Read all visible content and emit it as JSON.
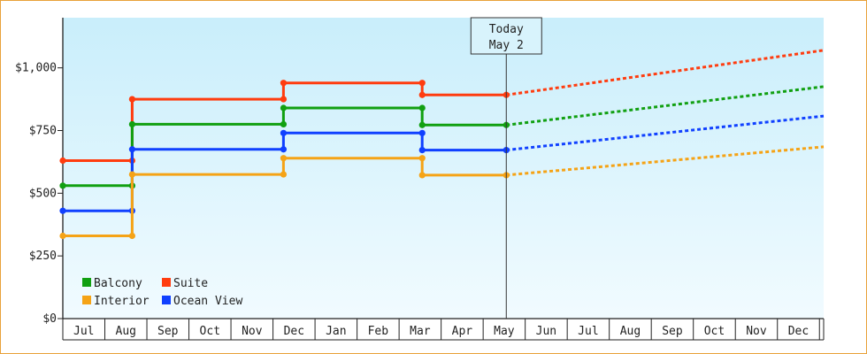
{
  "chart_data": {
    "type": "line",
    "step": true,
    "x_axis_labels": [
      "Jul",
      "Aug",
      "Sep",
      "Oct",
      "Nov",
      "Dec",
      "Jan",
      "Feb",
      "Mar",
      "Apr",
      "May",
      "Jun",
      "Jul",
      "Aug",
      "Sep",
      "Oct",
      "Nov",
      "Dec"
    ],
    "y_ticks": [
      "$0",
      "$250",
      "$500",
      "$750",
      "$1,000"
    ],
    "ylim": [
      0,
      1200
    ],
    "xlim_months": [
      -0.5,
      17.6
    ],
    "today": {
      "label_line1": "Today",
      "label_line2": "May 2",
      "x": 10.05
    },
    "series": [
      {
        "name": "Suite",
        "color": "#ff3c0f",
        "points": [
          [
            -0.5,
            630
          ],
          [
            1.15,
            630
          ],
          [
            1.15,
            875
          ],
          [
            4.75,
            875
          ],
          [
            4.75,
            940
          ],
          [
            8.05,
            940
          ],
          [
            8.05,
            892
          ],
          [
            10.05,
            892
          ]
        ],
        "projection": [
          [
            10.05,
            892
          ],
          [
            17.6,
            1070
          ]
        ]
      },
      {
        "name": "Balcony",
        "color": "#11a011",
        "points": [
          [
            -0.5,
            530
          ],
          [
            1.15,
            530
          ],
          [
            1.15,
            775
          ],
          [
            4.75,
            775
          ],
          [
            4.75,
            840
          ],
          [
            8.05,
            840
          ],
          [
            8.05,
            772
          ],
          [
            10.05,
            772
          ]
        ],
        "projection": [
          [
            10.05,
            772
          ],
          [
            17.6,
            925
          ]
        ]
      },
      {
        "name": "Ocean View",
        "color": "#1040ff",
        "points": [
          [
            -0.5,
            430
          ],
          [
            1.15,
            430
          ],
          [
            1.15,
            675
          ],
          [
            4.75,
            675
          ],
          [
            4.75,
            740
          ],
          [
            8.05,
            740
          ],
          [
            8.05,
            672
          ],
          [
            10.05,
            672
          ]
        ],
        "projection": [
          [
            10.05,
            672
          ],
          [
            17.6,
            808
          ]
        ]
      },
      {
        "name": "Interior",
        "color": "#f5a316",
        "points": [
          [
            -0.5,
            330
          ],
          [
            1.15,
            330
          ],
          [
            1.15,
            575
          ],
          [
            4.75,
            575
          ],
          [
            4.75,
            640
          ],
          [
            8.05,
            640
          ],
          [
            8.05,
            572
          ],
          [
            10.05,
            572
          ]
        ],
        "projection": [
          [
            10.05,
            572
          ],
          [
            17.6,
            685
          ]
        ]
      }
    ],
    "legend": [
      {
        "name": "Balcony",
        "color": "#11a011"
      },
      {
        "name": "Suite",
        "color": "#ff3c0f"
      },
      {
        "name": "Interior",
        "color": "#f5a316"
      },
      {
        "name": "Ocean View",
        "color": "#1040ff"
      }
    ],
    "legend_placement": "bottom-left",
    "grid": false
  }
}
